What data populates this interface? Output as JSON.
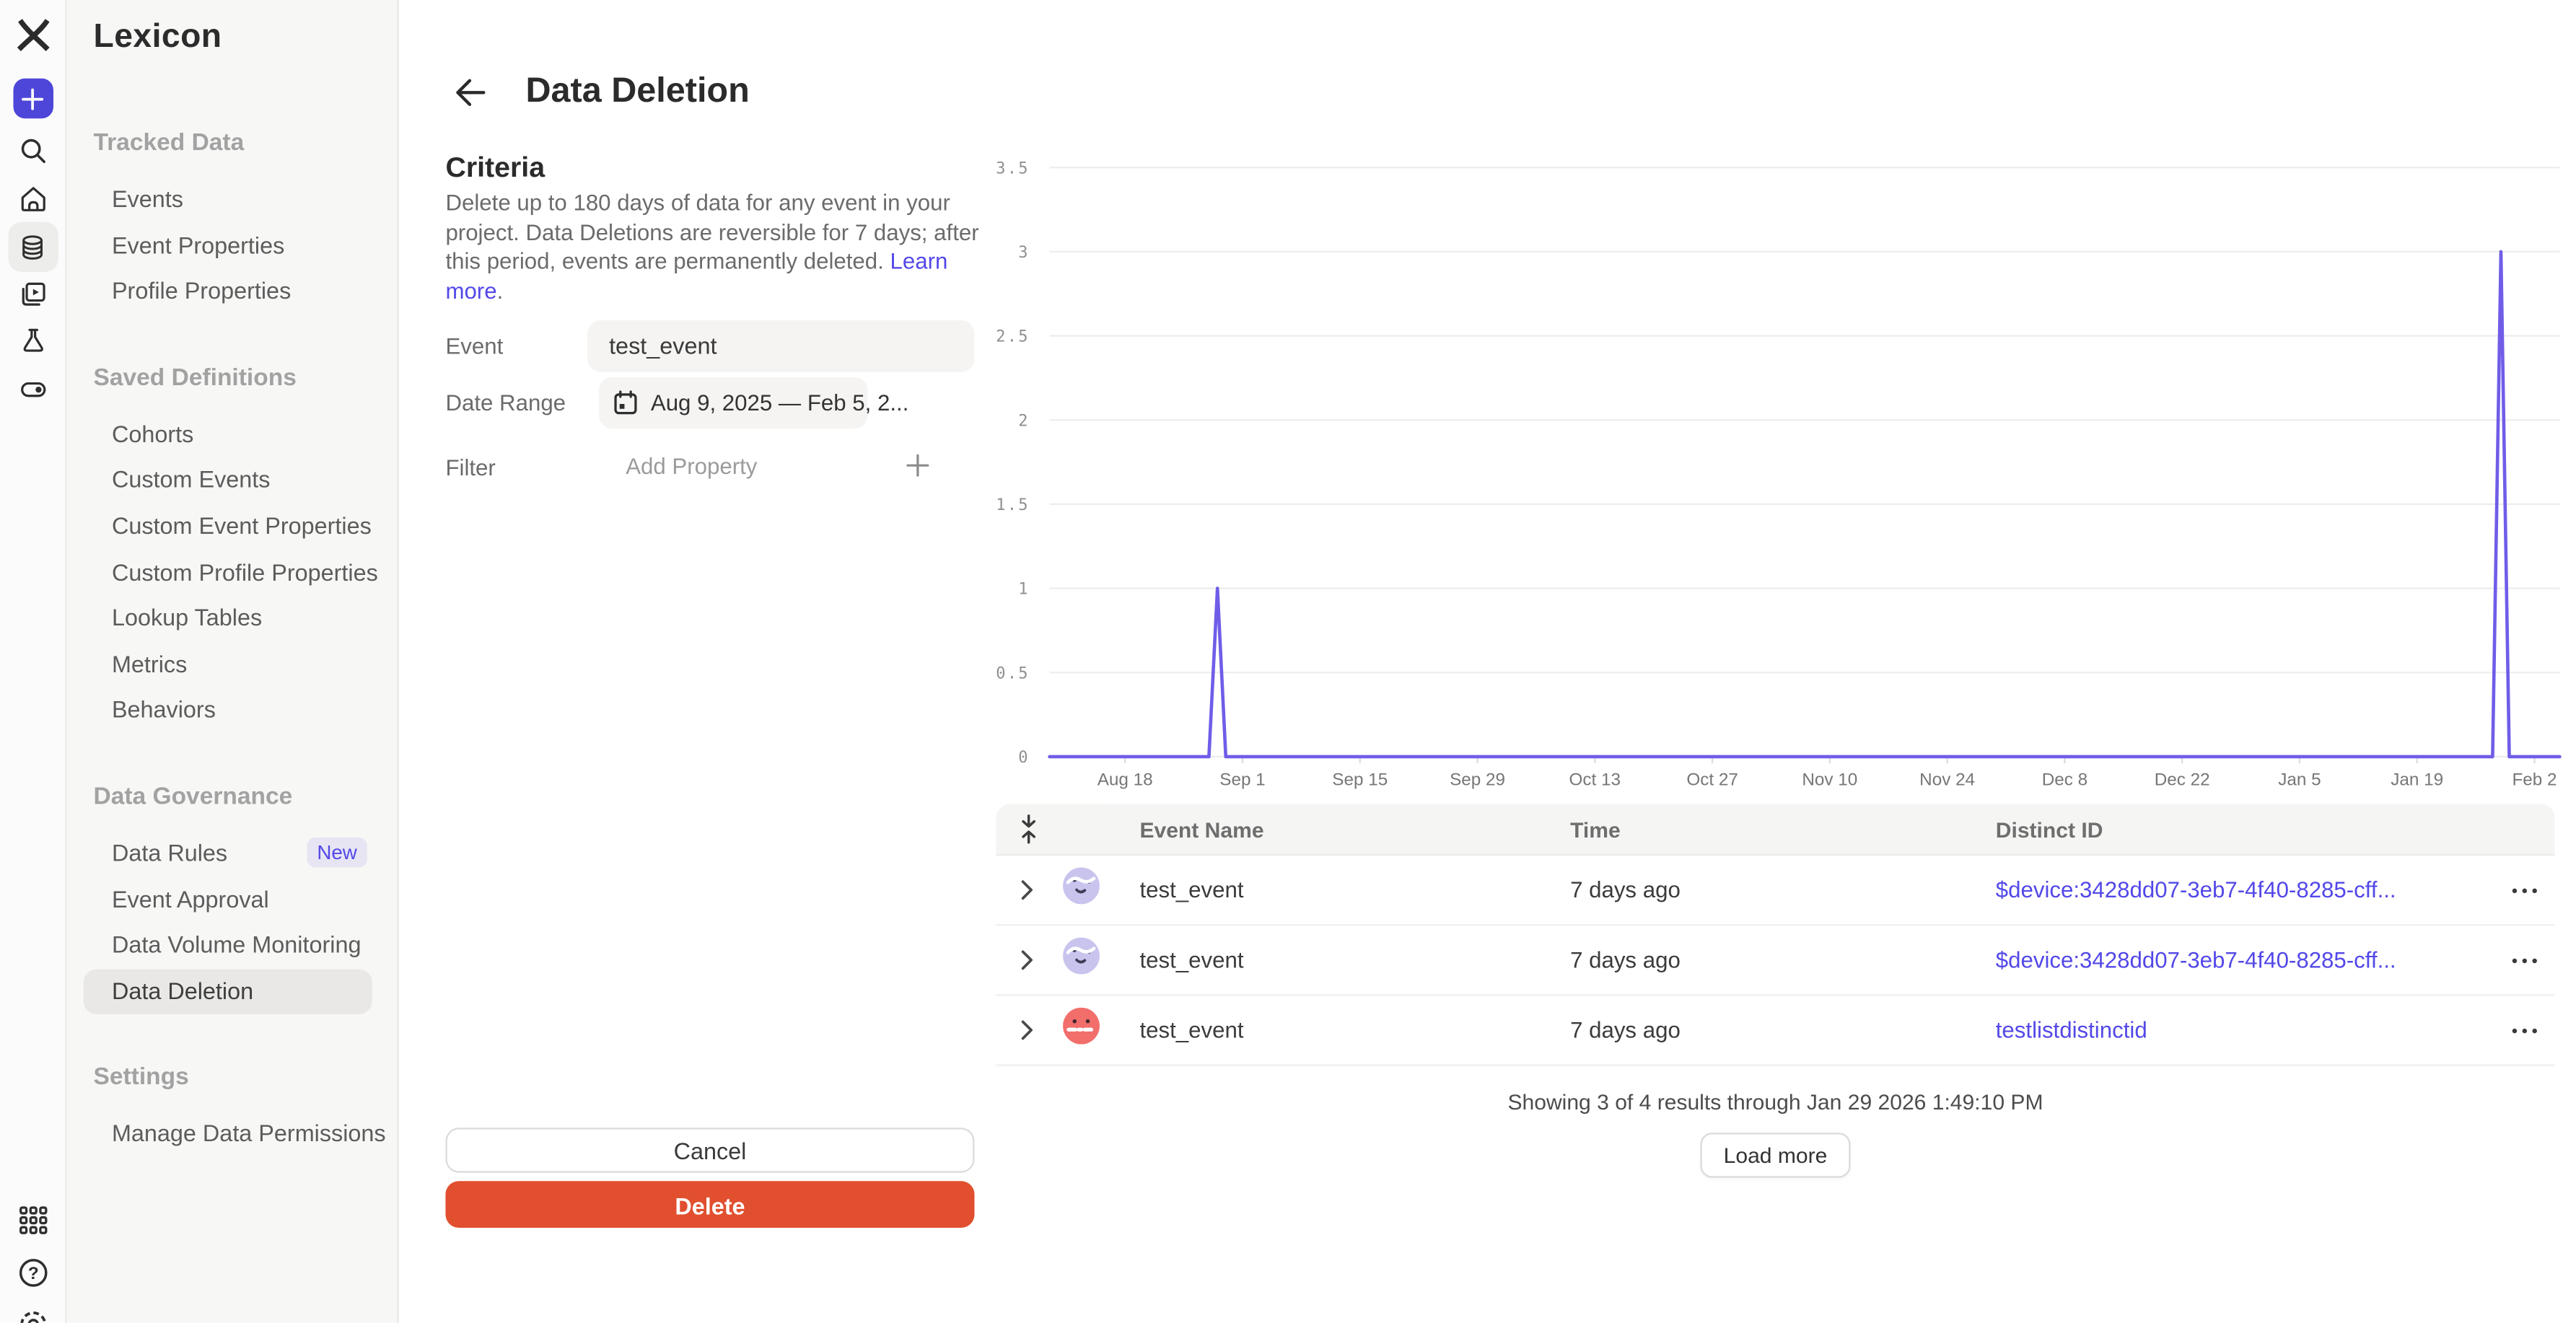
{
  "colors": {
    "accent_purple": "#5348e8",
    "plus_button": "#4e46d8",
    "delete_red": "#e14f2f",
    "chart_line": "#6f5de8",
    "active_pill": "#e9e8e6",
    "table_header_bg": "#f5f5f4",
    "avatar_lavender": "#c9c4ee",
    "avatar_coral": "#f26e6b"
  },
  "rail": {
    "icons": [
      "mixpanel-logo",
      "create-plus",
      "search",
      "home",
      "lexicon-database",
      "boards",
      "experiments-flask",
      "feature-flags-toggle",
      "apps-grid",
      "help",
      "settings-gear"
    ]
  },
  "sidebar": {
    "app_title": "Lexicon",
    "sections": [
      {
        "label": "Tracked Data",
        "items": [
          {
            "label": "Events"
          },
          {
            "label": "Event Properties"
          },
          {
            "label": "Profile Properties"
          }
        ]
      },
      {
        "label": "Saved Definitions",
        "items": [
          {
            "label": "Cohorts"
          },
          {
            "label": "Custom Events"
          },
          {
            "label": "Custom Event Properties"
          },
          {
            "label": "Custom Profile Properties"
          },
          {
            "label": "Lookup Tables"
          },
          {
            "label": "Metrics"
          },
          {
            "label": "Behaviors"
          }
        ]
      },
      {
        "label": "Data Governance",
        "items": [
          {
            "label": "Data Rules",
            "badge": "New"
          },
          {
            "label": "Event Approval"
          },
          {
            "label": "Data Volume Monitoring"
          },
          {
            "label": "Data Deletion",
            "active": true
          }
        ]
      },
      {
        "label": "Settings",
        "items": [
          {
            "label": "Manage Data Permissions",
            "external": true
          }
        ]
      }
    ]
  },
  "header": {
    "title": "Data Deletion"
  },
  "criteria": {
    "heading": "Criteria",
    "description": "Delete up to 180 days of data for any event in your project. Data Deletions are reversible for 7 days; after this period, events are permanently deleted. ",
    "learn_more": "Learn more",
    "learn_more_suffix": ".",
    "fields": {
      "event_label": "Event",
      "event_value": "test_event",
      "date_range_label": "Date Range",
      "date_range_value": "Aug 9, 2025 — Feb 5, 2...",
      "filter_label": "Filter",
      "filter_placeholder": "Add Property"
    },
    "cancel_label": "Cancel",
    "delete_label": "Delete"
  },
  "chart_data": {
    "type": "line",
    "title": "",
    "xlabel": "",
    "ylabel": "",
    "x_range": [
      "2025-08-09",
      "2026-02-05"
    ],
    "x_ticks": [
      {
        "label": "Aug 18",
        "date": "2025-08-18"
      },
      {
        "label": "Sep 1",
        "date": "2025-09-01"
      },
      {
        "label": "Sep 15",
        "date": "2025-09-15"
      },
      {
        "label": "Sep 29",
        "date": "2025-09-29"
      },
      {
        "label": "Oct 13",
        "date": "2025-10-13"
      },
      {
        "label": "Oct 27",
        "date": "2025-10-27"
      },
      {
        "label": "Nov 10",
        "date": "2025-11-10"
      },
      {
        "label": "Nov 24",
        "date": "2025-11-24"
      },
      {
        "label": "Dec 8",
        "date": "2025-12-08"
      },
      {
        "label": "Dec 22",
        "date": "2025-12-22"
      },
      {
        "label": "Jan 5",
        "date": "2026-01-05"
      },
      {
        "label": "Jan 19",
        "date": "2026-01-19"
      },
      {
        "label": "Feb 2",
        "date": "2026-02-02"
      }
    ],
    "y_ticks": [
      0,
      0.5,
      1,
      1.5,
      2,
      2.5,
      3,
      3.5
    ],
    "ylim": [
      0,
      3.5
    ],
    "grid": true,
    "legend": "none",
    "line_color": "#6f5de8",
    "series": [
      {
        "name": "test_event",
        "points": [
          [
            "2025-08-09",
            0
          ],
          [
            "2025-08-28",
            0
          ],
          [
            "2025-08-29",
            1
          ],
          [
            "2025-08-30",
            0
          ],
          [
            "2026-01-28",
            0
          ],
          [
            "2026-01-29",
            3
          ],
          [
            "2026-01-30",
            0
          ],
          [
            "2026-02-05",
            0
          ]
        ]
      }
    ]
  },
  "table": {
    "columns": [
      "Event Name",
      "Time",
      "Distinct ID"
    ],
    "rows": [
      {
        "event": "test_event",
        "time": "7 days ago",
        "distinct_id": "$device:3428dd07-3eb7-4f40-8285-cff...",
        "avatar": {
          "icon": "wavy-face-avatar",
          "color": "#c9c4ee"
        }
      },
      {
        "event": "test_event",
        "time": "7 days ago",
        "distinct_id": "$device:3428dd07-3eb7-4f40-8285-cff...",
        "avatar": {
          "icon": "wavy-face-avatar",
          "color": "#c9c4ee"
        }
      },
      {
        "event": "test_event",
        "time": "7 days ago",
        "distinct_id": "testlistdistinctid",
        "avatar": {
          "icon": "dash-mouth-face-avatar",
          "color": "#f26e6b"
        }
      }
    ],
    "footer": "Showing 3 of 4 results through Jan 29 2026 1:49:10 PM",
    "load_more_label": "Load more"
  }
}
